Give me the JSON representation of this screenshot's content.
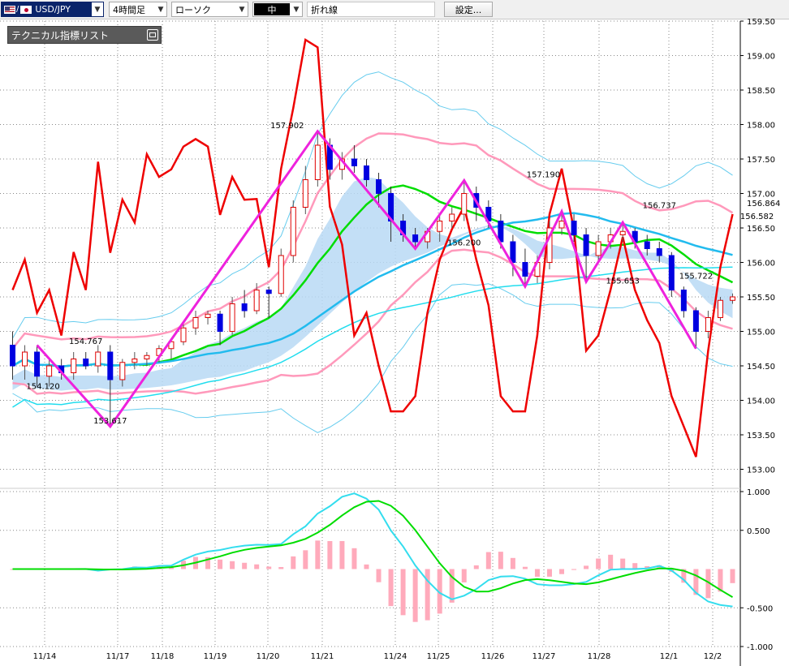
{
  "toolbar": {
    "symbol": "USD/JPY",
    "timeframe": "4時間足",
    "chart_type": "ローソク",
    "line_width": "中",
    "line_tool": "折れ線",
    "settings_button": "設定..."
  },
  "indicator_panel": {
    "title": "テクニカル指標リスト"
  },
  "colors": {
    "bull_candle": "#e00000",
    "bear_candle": "#0000e0",
    "short_ma": "#00dd00",
    "mid_ma": "#22bbee",
    "long_ma": "#22ddee",
    "bollinger_outer": "#66ccee",
    "bollinger_inner": "#ff99bb",
    "cloud_blue": "#b9d9f5",
    "cloud_pink": "#f7b8c8",
    "rsi_line": "#ee0000",
    "zigzag": "#ee22dd",
    "macd": "#33ddee",
    "macd_signal": "#00dd00",
    "macd_hist": "#ffaabb"
  },
  "chart_data": [
    {
      "type": "candlestick",
      "title": "",
      "y_ticks": [
        "159.50",
        "159.00",
        "158.50",
        "158.00",
        "157.50",
        "157.00",
        "156.50",
        "156.00",
        "155.50",
        "155.00",
        "154.50",
        "154.00",
        "153.50",
        "153.00"
      ],
      "ylim": [
        152.9,
        159.5
      ],
      "x_ticks": [
        "11/14",
        "11/17",
        "11/18",
        "11/19",
        "11/20",
        "11/21",
        "11/24",
        "11/25",
        "11/26",
        "11/27",
        "11/28",
        "12/1",
        "12/2"
      ],
      "last_price": "156.864",
      "annotations": [
        {
          "label": "157.902",
          "x": 22.5,
          "y": 157.9
        },
        {
          "label": "157.190",
          "x": 43.5,
          "y": 157.19
        },
        {
          "label": "156.737",
          "x": 53,
          "y": 156.74
        },
        {
          "label": "156.582",
          "x": 61,
          "y": 156.58
        },
        {
          "label": "154.767",
          "x": 6,
          "y": 154.77
        },
        {
          "label": "154.120",
          "x": 2.5,
          "y": 154.12
        },
        {
          "label": "153.617",
          "x": 8,
          "y": 153.62
        },
        {
          "label": "156.200",
          "x": 37,
          "y": 156.2
        },
        {
          "label": "155.653",
          "x": 50,
          "y": 155.65
        },
        {
          "label": "155.722",
          "x": 56,
          "y": 155.72
        }
      ],
      "candles": [
        [
          154.8,
          155.0,
          154.3,
          154.5
        ],
        [
          154.5,
          154.8,
          154.3,
          154.7
        ],
        [
          154.7,
          154.8,
          154.2,
          154.35
        ],
        [
          154.35,
          154.6,
          154.2,
          154.5
        ],
        [
          154.5,
          154.6,
          154.3,
          154.4
        ],
        [
          154.4,
          154.7,
          154.3,
          154.6
        ],
        [
          154.6,
          154.7,
          154.45,
          154.5
        ],
        [
          154.5,
          154.8,
          154.4,
          154.7
        ],
        [
          154.7,
          154.8,
          153.62,
          154.3
        ],
        [
          154.3,
          154.6,
          154.2,
          154.55
        ],
        [
          154.55,
          154.7,
          154.45,
          154.6
        ],
        [
          154.6,
          154.7,
          154.5,
          154.65
        ],
        [
          154.65,
          154.8,
          154.55,
          154.75
        ],
        [
          154.75,
          154.9,
          154.6,
          154.85
        ],
        [
          154.85,
          155.1,
          154.8,
          155.05
        ],
        [
          155.05,
          155.3,
          154.95,
          155.2
        ],
        [
          155.2,
          155.3,
          155.1,
          155.25
        ],
        [
          155.25,
          155.3,
          154.8,
          155.0
        ],
        [
          155.0,
          155.5,
          154.95,
          155.4
        ],
        [
          155.4,
          155.6,
          155.2,
          155.3
        ],
        [
          155.3,
          155.7,
          155.25,
          155.6
        ],
        [
          155.6,
          155.65,
          155.2,
          155.55
        ],
        [
          155.55,
          156.2,
          155.5,
          156.1
        ],
        [
          156.1,
          156.9,
          156.0,
          156.8
        ],
        [
          156.8,
          157.4,
          156.7,
          157.2
        ],
        [
          157.2,
          157.902,
          157.1,
          157.7
        ],
        [
          157.7,
          157.8,
          157.2,
          157.35
        ],
        [
          157.35,
          157.6,
          157.2,
          157.5
        ],
        [
          157.5,
          157.7,
          157.3,
          157.4
        ],
        [
          157.4,
          157.5,
          157.1,
          157.2
        ],
        [
          157.2,
          157.3,
          156.8,
          157.0
        ],
        [
          157.0,
          157.1,
          156.3,
          156.6
        ],
        [
          156.6,
          156.7,
          156.3,
          156.4
        ],
        [
          156.4,
          156.5,
          156.2,
          156.3
        ],
        [
          156.3,
          156.5,
          156.2,
          156.45
        ],
        [
          156.45,
          156.7,
          156.3,
          156.6
        ],
        [
          156.6,
          156.8,
          156.5,
          156.7
        ],
        [
          156.7,
          157.19,
          156.6,
          157.0
        ],
        [
          157.0,
          157.1,
          156.6,
          156.8
        ],
        [
          156.8,
          156.9,
          156.5,
          156.6
        ],
        [
          156.6,
          156.7,
          156.2,
          156.3
        ],
        [
          156.3,
          156.4,
          155.8,
          156.0
        ],
        [
          156.0,
          156.2,
          155.65,
          155.8
        ],
        [
          155.8,
          156.1,
          155.7,
          156.0
        ],
        [
          156.0,
          156.6,
          155.9,
          156.5
        ],
        [
          156.5,
          156.74,
          156.4,
          156.6
        ],
        [
          156.6,
          156.7,
          156.3,
          156.4
        ],
        [
          156.4,
          156.5,
          155.72,
          156.1
        ],
        [
          156.1,
          156.4,
          156.0,
          156.3
        ],
        [
          156.3,
          156.5,
          156.2,
          156.4
        ],
        [
          156.4,
          156.58,
          156.3,
          156.45
        ],
        [
          156.45,
          156.5,
          156.2,
          156.3
        ],
        [
          156.3,
          156.4,
          156.1,
          156.2
        ],
        [
          156.2,
          156.3,
          156.0,
          156.1
        ],
        [
          156.1,
          156.15,
          155.5,
          155.6
        ],
        [
          155.6,
          155.65,
          155.2,
          155.3
        ],
        [
          155.3,
          155.35,
          154.75,
          155.0
        ],
        [
          155.0,
          155.3,
          154.9,
          155.2
        ],
        [
          155.2,
          155.5,
          155.15,
          155.45
        ],
        [
          155.45,
          155.55,
          155.4,
          155.5
        ]
      ]
    },
    {
      "type": "macd",
      "y_ticks": [
        "1.000",
        "0.500",
        "-0.500",
        "-1.000"
      ],
      "ylim": [
        -1.0,
        1.0
      ]
    }
  ]
}
